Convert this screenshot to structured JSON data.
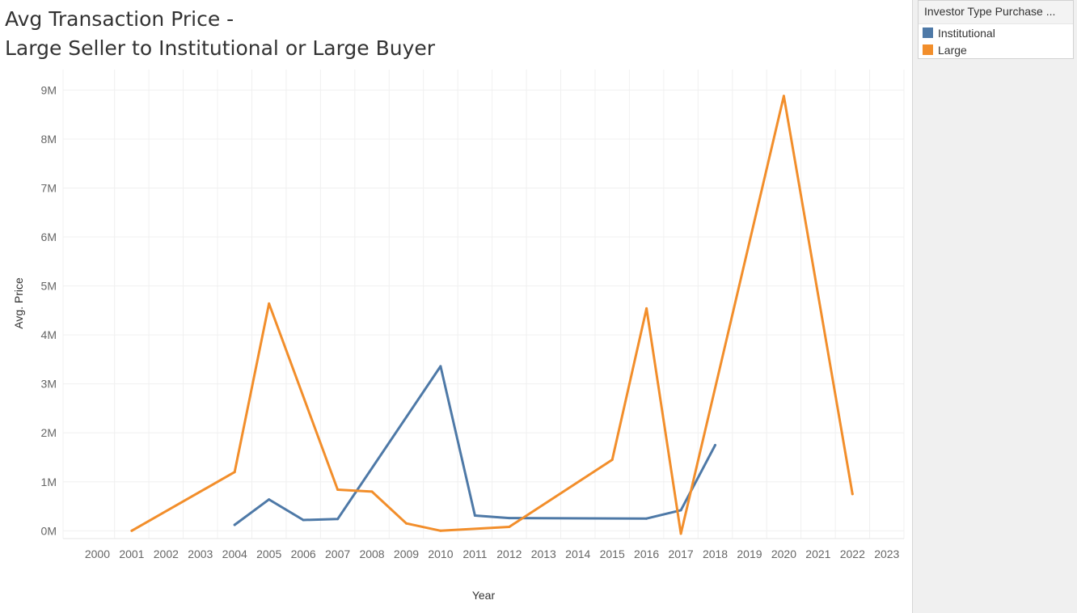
{
  "title": {
    "line1": "Avg Transaction Price -",
    "line2": "Large Seller to Institutional or Large Buyer"
  },
  "legend": {
    "title": "Investor Type Purchase ...",
    "items": [
      {
        "label": "Institutional",
        "color": "#4e79a7"
      },
      {
        "label": "Large",
        "color": "#f28e2b"
      }
    ]
  },
  "chart_data": {
    "type": "line",
    "xlabel": "Year",
    "ylabel": "Avg. Price",
    "x_categories": [
      "2000",
      "2001",
      "2002",
      "2003",
      "2004",
      "2005",
      "2006",
      "2007",
      "2008",
      "2009",
      "2010",
      "2011",
      "2012",
      "2013",
      "2014",
      "2015",
      "2016",
      "2017",
      "2018",
      "2019",
      "2020",
      "2021",
      "2022",
      "2023"
    ],
    "y_ticks": [
      {
        "value": 0,
        "label": "0M"
      },
      {
        "value": 1000000,
        "label": "1M"
      },
      {
        "value": 2000000,
        "label": "2M"
      },
      {
        "value": 3000000,
        "label": "3M"
      },
      {
        "value": 4000000,
        "label": "4M"
      },
      {
        "value": 5000000,
        "label": "5M"
      },
      {
        "value": 6000000,
        "label": "6M"
      },
      {
        "value": 7000000,
        "label": "7M"
      },
      {
        "value": 8000000,
        "label": "8M"
      },
      {
        "value": 9000000,
        "label": "9M"
      }
    ],
    "ylim": [
      -160000,
      9420000
    ],
    "grid": true,
    "legend_position": "right",
    "series": [
      {
        "name": "Institutional",
        "color": "#4e79a7",
        "points": [
          {
            "x": "2004",
            "y": 120000
          },
          {
            "x": "2005",
            "y": 640000
          },
          {
            "x": "2006",
            "y": 220000
          },
          {
            "x": "2007",
            "y": 240000
          },
          {
            "x": "2010",
            "y": 3360000
          },
          {
            "x": "2011",
            "y": 310000
          },
          {
            "x": "2012",
            "y": 260000
          },
          {
            "x": "2016",
            "y": 250000
          },
          {
            "x": "2017",
            "y": 420000
          },
          {
            "x": "2018",
            "y": 1750000
          }
        ]
      },
      {
        "name": "Large",
        "color": "#f28e2b",
        "points": [
          {
            "x": "2001",
            "y": 0
          },
          {
            "x": "2004",
            "y": 1200000
          },
          {
            "x": "2005",
            "y": 4640000
          },
          {
            "x": "2007",
            "y": 840000
          },
          {
            "x": "2008",
            "y": 800000
          },
          {
            "x": "2009",
            "y": 150000
          },
          {
            "x": "2010",
            "y": 0
          },
          {
            "x": "2012",
            "y": 80000
          },
          {
            "x": "2015",
            "y": 1450000
          },
          {
            "x": "2016",
            "y": 4540000
          },
          {
            "x": "2017",
            "y": -60000
          },
          {
            "x": "2020",
            "y": 8880000
          },
          {
            "x": "2022",
            "y": 750000
          }
        ]
      }
    ]
  }
}
